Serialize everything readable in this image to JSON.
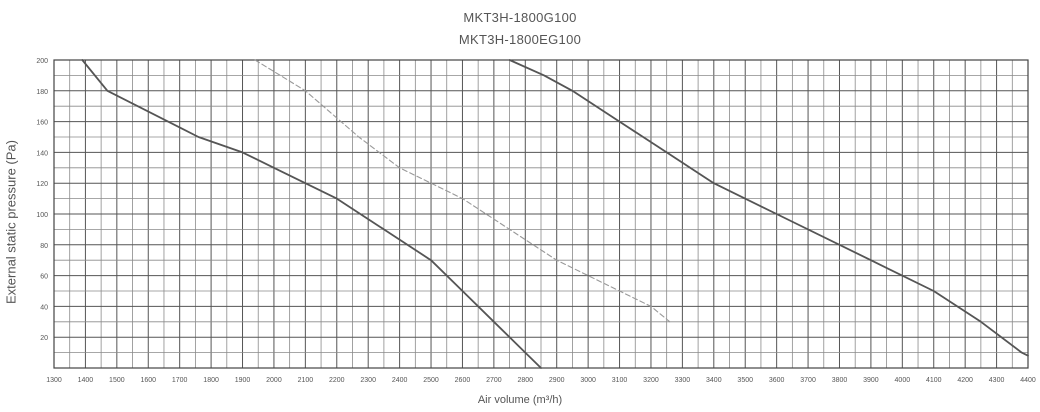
{
  "chart_data": {
    "type": "line",
    "title_lines": [
      "MKT3H-1800G100",
      "MKT3H-1800EG100"
    ],
    "xlabel": "Air volume (m³/h)",
    "ylabel": "External static pressure (Pa)",
    "xlim": [
      1300,
      4400
    ],
    "ylim": [
      0,
      200
    ],
    "x_ticks": [
      1300,
      1400,
      1500,
      1600,
      1700,
      1800,
      1900,
      2000,
      2100,
      2200,
      2300,
      2400,
      2500,
      2600,
      2700,
      2800,
      2900,
      3000,
      3100,
      3200,
      3300,
      3400,
      3500,
      3600,
      3700,
      3800,
      3900,
      4000,
      4100,
      4200,
      4300,
      4400
    ],
    "y_ticks": [
      20,
      40,
      60,
      80,
      100,
      120,
      140,
      160,
      180,
      200
    ],
    "grid": true,
    "legend": "none",
    "series": [
      {
        "style": "solid",
        "color": "#555555",
        "points": [
          [
            1390,
            200
          ],
          [
            1470,
            180
          ],
          [
            1760,
            150
          ],
          [
            1900,
            140
          ],
          [
            2000,
            130
          ],
          [
            2200,
            110
          ],
          [
            2350,
            90
          ],
          [
            2500,
            70
          ],
          [
            2600,
            50
          ],
          [
            2700,
            30
          ],
          [
            2800,
            10
          ],
          [
            2850,
            0
          ]
        ]
      },
      {
        "style": "dashed",
        "color": "#999999",
        "points": [
          [
            1940,
            200
          ],
          [
            2100,
            180
          ],
          [
            2270,
            150
          ],
          [
            2400,
            130
          ],
          [
            2600,
            110
          ],
          [
            2750,
            90
          ],
          [
            2900,
            70
          ],
          [
            3000,
            60
          ],
          [
            3100,
            50
          ],
          [
            3200,
            40
          ],
          [
            3260,
            30
          ]
        ]
      },
      {
        "style": "solid",
        "color": "#555555",
        "points": [
          [
            2750,
            200
          ],
          [
            2860,
            190
          ],
          [
            2950,
            180
          ],
          [
            3100,
            160
          ],
          [
            3250,
            140
          ],
          [
            3400,
            120
          ],
          [
            3600,
            100
          ],
          [
            3900,
            70
          ],
          [
            4100,
            50
          ],
          [
            4250,
            30
          ],
          [
            4380,
            10
          ],
          [
            4400,
            8
          ]
        ]
      }
    ]
  }
}
